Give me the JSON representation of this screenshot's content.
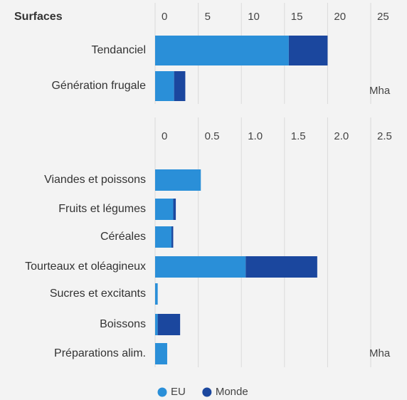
{
  "chart_data": [
    {
      "type": "bar",
      "orientation": "horizontal",
      "stacked": true,
      "title": "Surfaces",
      "unit": "Mha",
      "categories": [
        "Tendanciel",
        "Génération frugale"
      ],
      "series": [
        {
          "name": "EU",
          "color": "#2a8fd8",
          "values": [
            15.5,
            2.2
          ]
        },
        {
          "name": "Monde",
          "color": "#1b479e",
          "values": [
            4.5,
            1.3
          ]
        }
      ],
      "xlim": [
        0,
        25
      ],
      "xticks": [
        0,
        5,
        10,
        15,
        20,
        25
      ],
      "grid": true
    },
    {
      "type": "bar",
      "orientation": "horizontal",
      "stacked": true,
      "unit": "Mha",
      "categories": [
        "Viandes et poissons",
        "Fruits et légumes",
        "Céréales",
        "Tourteaux et oléagineux",
        "Sucres et excitants",
        "Boissons",
        "Préparations alim."
      ],
      "series": [
        {
          "color": "#2a8fd8",
          "values": [
            0.53,
            0.21,
            0.19,
            1.05,
            0.03,
            0.03,
            0.14
          ]
        },
        {
          "color": "#1b479e",
          "values": [
            0,
            0.03,
            0.02,
            0.83,
            0,
            0.26,
            0
          ]
        }
      ],
      "xlim": [
        0,
        2.5
      ],
      "xticks": [
        0,
        0.5,
        {
          "value": 1,
          "label": "1.0"
        },
        1.5,
        {
          "value": 2,
          "label": "2.0"
        },
        2.5
      ],
      "grid": true
    }
  ]
}
